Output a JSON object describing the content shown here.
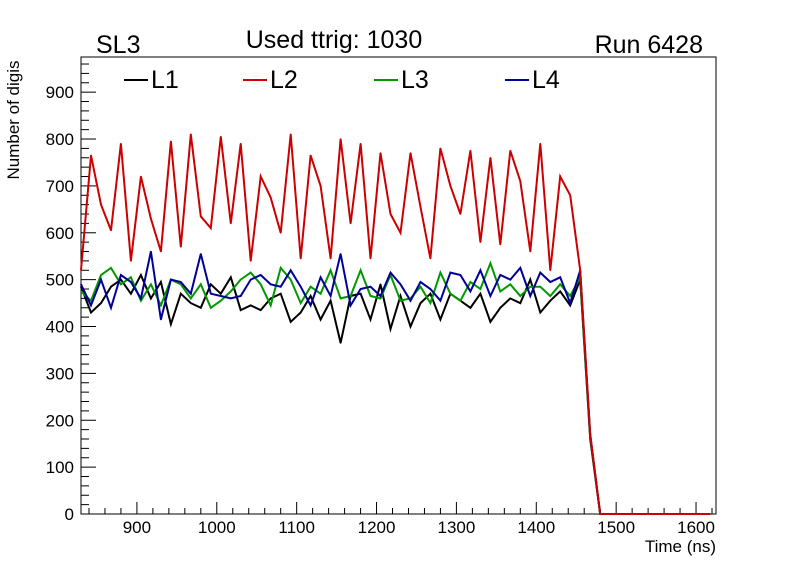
{
  "chart_data": {
    "type": "line",
    "top_left_label": "SL3",
    "title": "Used ttrig: 1030",
    "top_right_label": "Run 6428",
    "xlabel": "Time (ns)",
    "ylabel": "Number of digis",
    "xlim": [
      830,
      1625
    ],
    "ylim": [
      0,
      975
    ],
    "xticks": [
      900,
      1000,
      1100,
      1200,
      1300,
      1400,
      1500,
      1600
    ],
    "yticks": [
      0,
      100,
      200,
      300,
      400,
      500,
      600,
      700,
      800,
      900
    ],
    "x_start": 830,
    "x_step": 12.5,
    "grid": false,
    "legend_position": "top",
    "series": [
      {
        "name": "L1",
        "color": "#000000",
        "values": [
          485,
          430,
          450,
          485,
          500,
          470,
          510,
          460,
          495,
          405,
          470,
          450,
          440,
          490,
          470,
          505,
          435,
          445,
          435,
          460,
          470,
          410,
          430,
          465,
          415,
          455,
          365,
          465,
          470,
          415,
          490,
          395,
          465,
          400,
          450,
          470,
          415,
          470,
          455,
          440,
          470,
          410,
          440,
          460,
          450,
          500,
          430,
          455,
          475,
          445,
          500,
          160,
          0,
          0,
          0,
          0,
          0,
          0,
          0,
          0,
          0,
          0,
          0,
          0
        ]
      },
      {
        "name": "L2",
        "color": "#cc0000",
        "values": [
          520,
          765,
          660,
          605,
          790,
          540,
          720,
          630,
          560,
          795,
          570,
          810,
          635,
          610,
          805,
          620,
          790,
          540,
          720,
          675,
          600,
          810,
          545,
          765,
          700,
          545,
          800,
          620,
          790,
          545,
          770,
          640,
          600,
          770,
          655,
          545,
          780,
          700,
          640,
          775,
          580,
          760,
          575,
          775,
          710,
          560,
          790,
          520,
          720,
          680,
          520,
          170,
          0,
          0,
          0,
          0,
          0,
          0,
          0,
          0,
          0,
          0,
          0,
          0
        ]
      },
      {
        "name": "L3",
        "color": "#009900",
        "values": [
          475,
          455,
          510,
          525,
          490,
          505,
          455,
          490,
          445,
          500,
          490,
          460,
          490,
          440,
          455,
          475,
          500,
          515,
          490,
          445,
          525,
          500,
          450,
          485,
          470,
          520,
          460,
          465,
          520,
          465,
          460,
          510,
          455,
          460,
          485,
          450,
          515,
          470,
          455,
          495,
          480,
          535,
          475,
          490,
          465,
          485,
          485,
          465,
          490,
          465,
          505,
          165,
          0,
          0,
          0,
          0,
          0,
          0,
          0,
          0,
          0,
          0,
          0,
          0
        ]
      },
      {
        "name": "L4",
        "color": "#000099",
        "values": [
          490,
          445,
          500,
          440,
          510,
          495,
          460,
          560,
          415,
          500,
          495,
          470,
          555,
          470,
          465,
          460,
          465,
          500,
          510,
          490,
          485,
          520,
          485,
          445,
          505,
          465,
          555,
          445,
          480,
          485,
          465,
          515,
          490,
          455,
          495,
          480,
          455,
          515,
          510,
          475,
          520,
          465,
          510,
          500,
          525,
          465,
          515,
          495,
          505,
          450,
          520,
          170,
          0,
          0,
          0,
          0,
          0,
          0,
          0,
          0,
          0,
          0,
          0,
          0
        ]
      }
    ]
  }
}
